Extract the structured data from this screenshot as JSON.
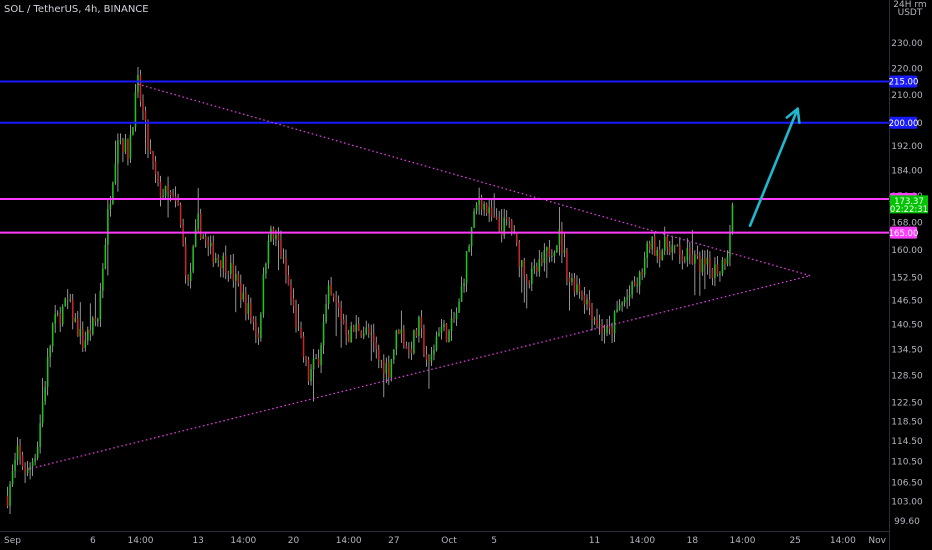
{
  "header": {
    "symbol_text": "SOL / TetherUS, 4h, BINANCE"
  },
  "price_axis": {
    "currency_line1": "24H rm",
    "currency_line2": "USDT"
  },
  "colors": {
    "background": "#000000",
    "bull": "#22c222",
    "bear": "#c62828",
    "blue_level": "#1a1aff",
    "magenta_level": "#ff3cff",
    "triangle": "#e23ee2",
    "arrow": "#1fb8d0",
    "current_tag": "#00c400"
  },
  "chart_data": {
    "type": "candlestick",
    "title": "SOL / TetherUS, 4h, BINANCE",
    "y_scale": "log",
    "ylim": [
      98,
      248
    ],
    "xlim": [
      -3,
      351
    ],
    "y_ticks": [
      "99.60",
      "103.00",
      "106.50",
      "110.50",
      "114.50",
      "118.50",
      "122.50",
      "128.50",
      "134.50",
      "140.50",
      "146.50",
      "152.50",
      "160.00",
      "168.00",
      "176.00",
      "184.00",
      "192.00",
      "200.00",
      "210.00",
      "220.00",
      "230.00"
    ],
    "y_tick_values": [
      99.6,
      103,
      106.5,
      110.5,
      114.5,
      118.5,
      122.5,
      128.5,
      134.5,
      140.5,
      146.5,
      152.5,
      160,
      168,
      176,
      184,
      192,
      200,
      210,
      220,
      230
    ],
    "x_ticks": [
      {
        "label": "Sep",
        "bar": 0
      },
      {
        "label": "6",
        "bar": 34
      },
      {
        "label": "14:00",
        "bar": 53
      },
      {
        "label": "13",
        "bar": 76
      },
      {
        "label": "14:00",
        "bar": 94
      },
      {
        "label": "20",
        "bar": 114
      },
      {
        "label": "14:00",
        "bar": 136
      },
      {
        "label": "27",
        "bar": 154
      },
      {
        "label": "Oct",
        "bar": 176
      },
      {
        "label": "5",
        "bar": 194
      },
      {
        "label": "11",
        "bar": 234
      },
      {
        "label": "14:00",
        "bar": 253
      },
      {
        "label": "18",
        "bar": 273
      },
      {
        "label": "14:00",
        "bar": 293
      },
      {
        "label": "25",
        "bar": 314
      },
      {
        "label": "14:00",
        "bar": 333
      },
      {
        "label": "Nov",
        "bar": 353
      }
    ],
    "anchors": [
      [
        0,
        104
      ],
      [
        4,
        112
      ],
      [
        8,
        108
      ],
      [
        12,
        114
      ],
      [
        18,
        140
      ],
      [
        24,
        146
      ],
      [
        30,
        136
      ],
      [
        36,
        142
      ],
      [
        40,
        170
      ],
      [
        44,
        196
      ],
      [
        48,
        190
      ],
      [
        52,
        214
      ],
      [
        56,
        192
      ],
      [
        60,
        178
      ],
      [
        64,
        176
      ],
      [
        68,
        172
      ],
      [
        72,
        150
      ],
      [
        76,
        168
      ],
      [
        80,
        160
      ],
      [
        84,
        158
      ],
      [
        88,
        156
      ],
      [
        92,
        150
      ],
      [
        96,
        144
      ],
      [
        100,
        138
      ],
      [
        104,
        165
      ],
      [
        108,
        162
      ],
      [
        112,
        150
      ],
      [
        116,
        138
      ],
      [
        120,
        128
      ],
      [
        124,
        133
      ],
      [
        128,
        148
      ],
      [
        132,
        144
      ],
      [
        136,
        138
      ],
      [
        140,
        140
      ],
      [
        144,
        138
      ],
      [
        148,
        132
      ],
      [
        152,
        130
      ],
      [
        156,
        140
      ],
      [
        160,
        134
      ],
      [
        164,
        140
      ],
      [
        168,
        130
      ],
      [
        172,
        140
      ],
      [
        176,
        138
      ],
      [
        180,
        145
      ],
      [
        184,
        162
      ],
      [
        188,
        176
      ],
      [
        192,
        170
      ],
      [
        196,
        166
      ],
      [
        200,
        168
      ],
      [
        204,
        158
      ],
      [
        208,
        152
      ],
      [
        212,
        155
      ],
      [
        216,
        160
      ],
      [
        220,
        164
      ],
      [
        224,
        152
      ],
      [
        228,
        150
      ],
      [
        232,
        145
      ],
      [
        236,
        140
      ],
      [
        240,
        138
      ],
      [
        244,
        145
      ],
      [
        248,
        148
      ],
      [
        252,
        152
      ],
      [
        256,
        162
      ],
      [
        260,
        160
      ],
      [
        264,
        162
      ],
      [
        268,
        158
      ],
      [
        272,
        158
      ],
      [
        276,
        156
      ],
      [
        280,
        155
      ],
      [
        284,
        155
      ],
      [
        287,
        160
      ],
      [
        289,
        174
      ]
    ],
    "current_price": 173.37,
    "current_price_text": "173.37",
    "countdown_text": "02:22:31",
    "levels": [
      {
        "price": 215,
        "label": "215.00",
        "color": "blue"
      },
      {
        "price": 200,
        "label": "200.00",
        "color": "blue"
      },
      {
        "price": 175,
        "label": "175.00",
        "color": "magenta"
      },
      {
        "price": 165,
        "label": "165.00",
        "color": "magenta"
      }
    ],
    "triangle_upper": [
      [
        52,
        214
      ],
      [
        320,
        153
      ]
    ],
    "triangle_lower": [
      [
        8,
        109
      ],
      [
        320,
        153
      ]
    ],
    "projection_arrow": [
      [
        296,
        167
      ],
      [
        315,
        205
      ]
    ],
    "legend": "none",
    "grid": false
  }
}
